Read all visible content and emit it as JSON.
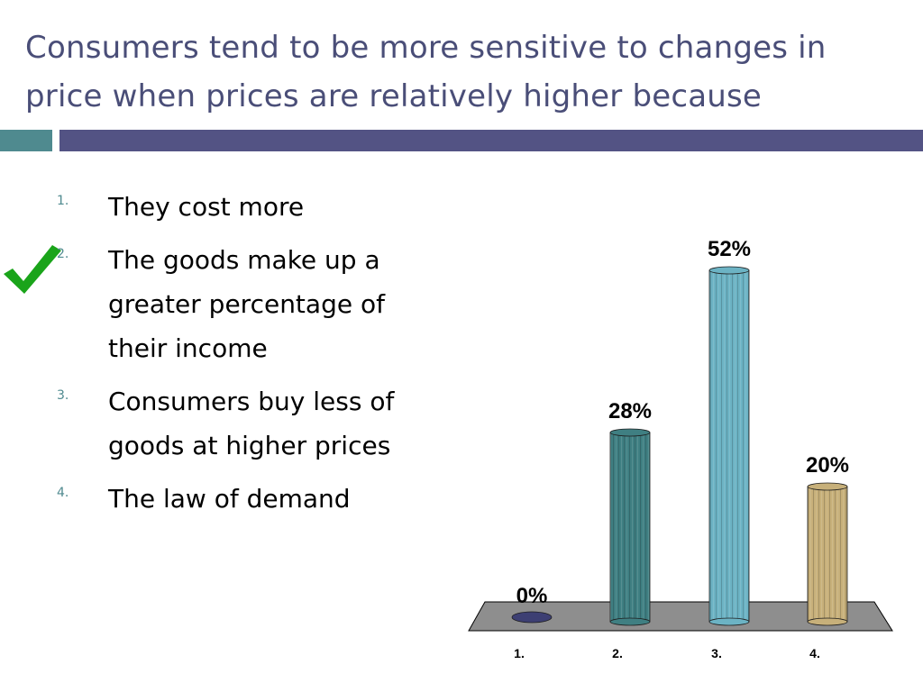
{
  "slide": {
    "title": "Consumers tend to be more sensitive to changes in price when prices are relatively higher because",
    "correct_option_index": 1,
    "colors": {
      "title": "#4a4e78",
      "rule_left": "#4f8a8f",
      "rule_right": "#535384",
      "check": "#1aa41a"
    }
  },
  "options": [
    {
      "number": "1.",
      "text": "They cost more"
    },
    {
      "number": "2.",
      "text": "The goods make up  a greater percentage of their income"
    },
    {
      "number": "3.",
      "text": "Consumers buy less of goods at higher prices"
    },
    {
      "number": "4.",
      "text": "The law of demand"
    }
  ],
  "chart_data": {
    "type": "bar",
    "categories": [
      "1.",
      "2.",
      "3.",
      "4."
    ],
    "values": [
      0,
      28,
      52,
      20
    ],
    "data_labels": [
      "0%",
      "28%",
      "52%",
      "20%"
    ],
    "colors": [
      "#3d3f73",
      "#3f7f82",
      "#6cb3c4",
      "#c7b07a"
    ],
    "ylim": [
      0,
      52
    ],
    "title": "",
    "xlabel": "",
    "ylabel": "",
    "grid": false,
    "legend": "none"
  }
}
